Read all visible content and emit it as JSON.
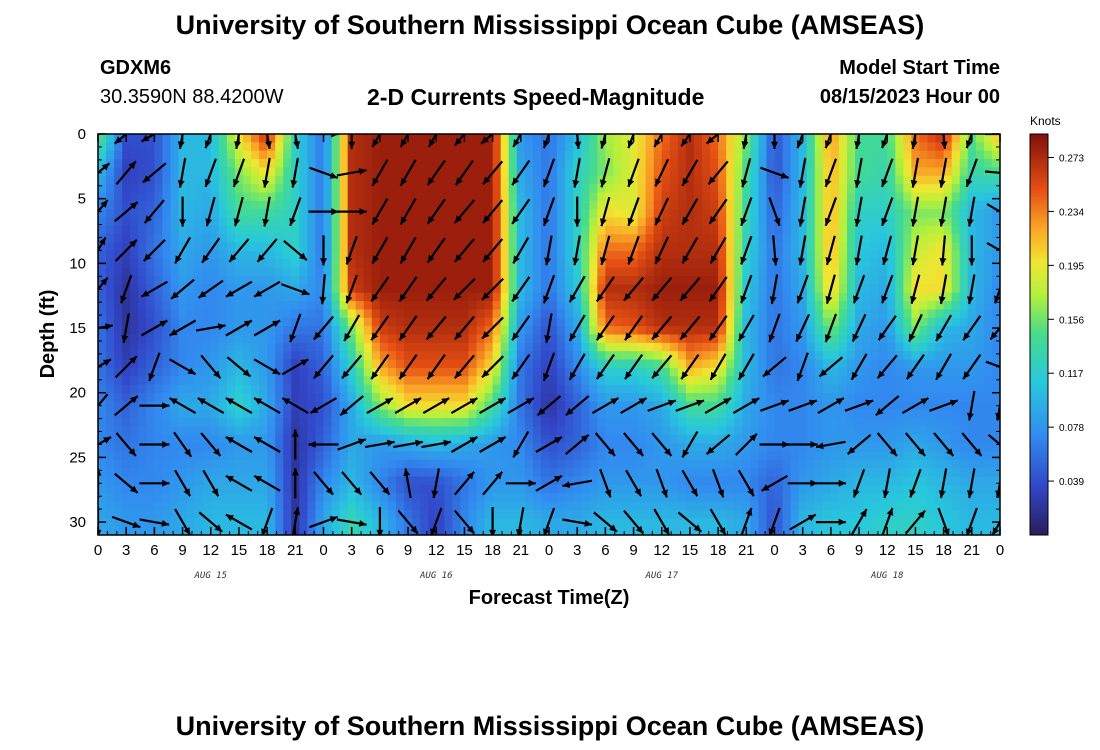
{
  "header": {
    "title": "University of Southern Mississippi Ocean Cube (AMSEAS)",
    "station_id": "GDXM6",
    "station_coords": "30.3590N  88.4200W",
    "model_start_label": "Model Start Time",
    "model_start_value": "08/15/2023 Hour 00",
    "footer_title": "University of Southern Mississippi Ocean Cube (AMSEAS)"
  },
  "chart_data": {
    "type": "heatmap",
    "title": "2-D Currents Speed-Magnitude",
    "xlabel": "Forecast Time(Z)",
    "ylabel": "Depth (ft)",
    "x_tick_labels": [
      "0",
      "3",
      "6",
      "9",
      "12",
      "15",
      "18",
      "21",
      "0",
      "3",
      "6",
      "9",
      "12",
      "15",
      "18",
      "21",
      "0",
      "3",
      "6",
      "9",
      "12",
      "15",
      "18",
      "21",
      "0",
      "3",
      "6",
      "9",
      "12",
      "15",
      "18",
      "21",
      "0"
    ],
    "date_labels": [
      "AUG 15",
      "AUG 16",
      "AUG 17",
      "AUG 18"
    ],
    "xlim_hours": [
      0,
      96
    ],
    "y_tick_labels": [
      "0",
      "5",
      "10",
      "15",
      "20",
      "25",
      "30"
    ],
    "ylim_ft": [
      0,
      31
    ],
    "colorbar": {
      "unit": "Knots",
      "tick_labels": [
        "0.273",
        "0.234",
        "0.195",
        "0.156",
        "0.117",
        "0.078",
        "0.039"
      ],
      "range": [
        0,
        0.29
      ]
    },
    "speed_grid": {
      "depths_ft": [
        0,
        3,
        6,
        9,
        12,
        15,
        18,
        21,
        24,
        27,
        30
      ],
      "hours": [
        0,
        3,
        6,
        9,
        12,
        15,
        18,
        21,
        24,
        27,
        30,
        33,
        36,
        39,
        42,
        45,
        48,
        51,
        54,
        57,
        60,
        63,
        66,
        69,
        72,
        75,
        78,
        81,
        84,
        87,
        90,
        93,
        96
      ],
      "values": [
        [
          0.16,
          0.04,
          0.04,
          0.1,
          0.1,
          0.2,
          0.27,
          0.12,
          0.06,
          0.27,
          0.28,
          0.28,
          0.28,
          0.28,
          0.28,
          0.08,
          0.06,
          0.1,
          0.17,
          0.19,
          0.24,
          0.27,
          0.24,
          0.16,
          0.04,
          0.1,
          0.23,
          0.14,
          0.14,
          0.24,
          0.27,
          0.15,
          0.22
        ],
        [
          0.1,
          0.03,
          0.04,
          0.1,
          0.1,
          0.16,
          0.2,
          0.12,
          0.06,
          0.27,
          0.28,
          0.28,
          0.28,
          0.28,
          0.28,
          0.09,
          0.06,
          0.12,
          0.16,
          0.19,
          0.25,
          0.27,
          0.25,
          0.14,
          0.04,
          0.1,
          0.22,
          0.14,
          0.13,
          0.22,
          0.22,
          0.13,
          0.14
        ],
        [
          0.07,
          0.04,
          0.05,
          0.1,
          0.09,
          0.14,
          0.14,
          0.12,
          0.06,
          0.27,
          0.28,
          0.28,
          0.28,
          0.28,
          0.28,
          0.1,
          0.06,
          0.12,
          0.2,
          0.19,
          0.26,
          0.27,
          0.26,
          0.13,
          0.05,
          0.1,
          0.22,
          0.12,
          0.12,
          0.16,
          0.16,
          0.1,
          0.08
        ],
        [
          0.05,
          0.03,
          0.06,
          0.09,
          0.08,
          0.1,
          0.1,
          0.12,
          0.06,
          0.27,
          0.28,
          0.28,
          0.28,
          0.28,
          0.28,
          0.1,
          0.06,
          0.12,
          0.24,
          0.24,
          0.27,
          0.27,
          0.27,
          0.12,
          0.06,
          0.1,
          0.22,
          0.11,
          0.1,
          0.18,
          0.2,
          0.1,
          0.08
        ],
        [
          0.05,
          0.02,
          0.05,
          0.08,
          0.07,
          0.08,
          0.08,
          0.09,
          0.07,
          0.26,
          0.28,
          0.28,
          0.28,
          0.28,
          0.28,
          0.1,
          0.06,
          0.11,
          0.27,
          0.27,
          0.28,
          0.28,
          0.28,
          0.11,
          0.06,
          0.09,
          0.21,
          0.1,
          0.09,
          0.2,
          0.2,
          0.1,
          0.07
        ],
        [
          0.06,
          0.02,
          0.04,
          0.07,
          0.07,
          0.08,
          0.08,
          0.06,
          0.06,
          0.16,
          0.26,
          0.27,
          0.27,
          0.27,
          0.24,
          0.08,
          0.04,
          0.09,
          0.24,
          0.25,
          0.27,
          0.27,
          0.27,
          0.1,
          0.06,
          0.08,
          0.16,
          0.09,
          0.08,
          0.16,
          0.1,
          0.09,
          0.07
        ],
        [
          0.06,
          0.03,
          0.05,
          0.07,
          0.08,
          0.1,
          0.08,
          0.03,
          0.05,
          0.12,
          0.22,
          0.25,
          0.25,
          0.25,
          0.2,
          0.06,
          0.03,
          0.07,
          0.12,
          0.12,
          0.14,
          0.22,
          0.2,
          0.1,
          0.06,
          0.07,
          0.1,
          0.08,
          0.07,
          0.08,
          0.08,
          0.08,
          0.07
        ],
        [
          0.07,
          0.05,
          0.07,
          0.09,
          0.09,
          0.12,
          0.09,
          0.03,
          0.04,
          0.09,
          0.16,
          0.2,
          0.2,
          0.2,
          0.14,
          0.06,
          0.02,
          0.05,
          0.08,
          0.08,
          0.09,
          0.14,
          0.14,
          0.09,
          0.07,
          0.07,
          0.08,
          0.07,
          0.07,
          0.07,
          0.07,
          0.07,
          0.07
        ],
        [
          0.07,
          0.06,
          0.07,
          0.07,
          0.07,
          0.08,
          0.08,
          0.02,
          0.05,
          0.09,
          0.08,
          0.09,
          0.1,
          0.09,
          0.08,
          0.07,
          0.04,
          0.05,
          0.07,
          0.07,
          0.08,
          0.09,
          0.09,
          0.08,
          0.07,
          0.07,
          0.08,
          0.08,
          0.08,
          0.09,
          0.08,
          0.07,
          0.07
        ],
        [
          0.08,
          0.07,
          0.07,
          0.08,
          0.09,
          0.09,
          0.09,
          0.02,
          0.07,
          0.1,
          0.07,
          0.04,
          0.04,
          0.06,
          0.08,
          0.08,
          0.06,
          0.07,
          0.08,
          0.08,
          0.08,
          0.07,
          0.07,
          0.07,
          0.05,
          0.08,
          0.09,
          0.1,
          0.1,
          0.11,
          0.1,
          0.09,
          0.09
        ],
        [
          0.09,
          0.08,
          0.08,
          0.09,
          0.1,
          0.1,
          0.1,
          0.02,
          0.09,
          0.13,
          0.1,
          0.06,
          0.03,
          0.07,
          0.1,
          0.1,
          0.09,
          0.09,
          0.1,
          0.1,
          0.1,
          0.1,
          0.1,
          0.09,
          0.04,
          0.1,
          0.11,
          0.11,
          0.12,
          0.12,
          0.11,
          0.1,
          0.1
        ]
      ]
    },
    "vector_directions_deg": {
      "description": "direction toward which current flows, degrees clockwise from north",
      "depths_ft": [
        0,
        3,
        6,
        9,
        12,
        15,
        18,
        21,
        24,
        27,
        30
      ],
      "hours": [
        0,
        3,
        6,
        9,
        12,
        15,
        18,
        21,
        24,
        27,
        30,
        33,
        36,
        39,
        42,
        45,
        48,
        51,
        54,
        57,
        60,
        63,
        66,
        69,
        72,
        75,
        78,
        81,
        84,
        87,
        90,
        93,
        96
      ],
      "values": [
        [
          200,
          230,
          240,
          190,
          200,
          190,
          170,
          170,
          90,
          180,
          210,
          210,
          210,
          220,
          230,
          210,
          200,
          175,
          195,
          200,
          210,
          215,
          230,
          190,
          180,
          200,
          200,
          190,
          200,
          190,
          175,
          200,
          90
        ],
        [
          50,
          40,
          230,
          190,
          200,
          200,
          190,
          190,
          110,
          80,
          210,
          210,
          215,
          215,
          220,
          215,
          200,
          190,
          195,
          200,
          205,
          210,
          220,
          195,
          110,
          190,
          200,
          190,
          200,
          190,
          190,
          200,
          95
        ],
        [
          40,
          50,
          220,
          180,
          195,
          195,
          190,
          200,
          90,
          90,
          210,
          210,
          215,
          220,
          220,
          215,
          200,
          180,
          195,
          200,
          205,
          210,
          215,
          200,
          160,
          190,
          200,
          190,
          200,
          190,
          190,
          190,
          120
        ],
        [
          30,
          45,
          225,
          210,
          215,
          220,
          220,
          130,
          180,
          200,
          210,
          210,
          215,
          220,
          220,
          210,
          190,
          190,
          195,
          200,
          205,
          210,
          210,
          200,
          175,
          190,
          195,
          190,
          195,
          190,
          185,
          180,
          120
        ],
        [
          40,
          200,
          240,
          230,
          235,
          240,
          240,
          110,
          185,
          200,
          215,
          215,
          220,
          225,
          225,
          215,
          200,
          210,
          215,
          220,
          220,
          220,
          215,
          200,
          190,
          200,
          195,
          200,
          200,
          195,
          190,
          190,
          200
        ],
        [
          80,
          190,
          60,
          240,
          80,
          60,
          60,
          200,
          220,
          210,
          215,
          215,
          220,
          220,
          225,
          215,
          190,
          210,
          215,
          215,
          220,
          220,
          215,
          210,
          200,
          205,
          200,
          205,
          215,
          205,
          210,
          215,
          220
        ],
        [
          60,
          45,
          200,
          120,
          140,
          130,
          120,
          60,
          220,
          220,
          215,
          215,
          215,
          220,
          225,
          215,
          200,
          210,
          215,
          215,
          220,
          215,
          210,
          210,
          230,
          200,
          230,
          210,
          220,
          215,
          210,
          215,
          110
        ],
        [
          220,
          50,
          90,
          300,
          300,
          300,
          300,
          300,
          240,
          230,
          60,
          60,
          60,
          60,
          60,
          60,
          230,
          230,
          60,
          60,
          70,
          70,
          60,
          60,
          70,
          70,
          60,
          70,
          230,
          60,
          70,
          190,
          190
        ],
        [
          60,
          140,
          90,
          145,
          140,
          300,
          300,
          0,
          270,
          70,
          80,
          80,
          80,
          60,
          60,
          210,
          60,
          50,
          140,
          140,
          140,
          210,
          230,
          45,
          90,
          90,
          260,
          230,
          140,
          140,
          140,
          140,
          130
        ],
        [
          0,
          130,
          90,
          150,
          150,
          300,
          300,
          0,
          140,
          140,
          140,
          350,
          190,
          40,
          40,
          90,
          60,
          260,
          160,
          150,
          160,
          150,
          160,
          150,
          240,
          90,
          90,
          200,
          190,
          200,
          190,
          190,
          190
        ],
        [
          180,
          110,
          100,
          150,
          130,
          300,
          200,
          10,
          70,
          100,
          180,
          140,
          200,
          140,
          180,
          190,
          200,
          100,
          130,
          140,
          150,
          130,
          150,
          20,
          200,
          60,
          90,
          30,
          20,
          40,
          160,
          200,
          210
        ]
      ]
    }
  }
}
